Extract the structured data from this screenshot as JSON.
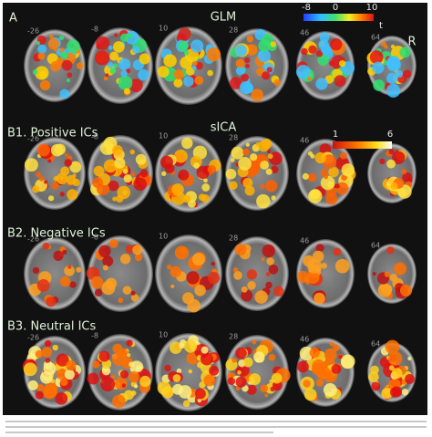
{
  "panel_a": {
    "label": "A",
    "method": "GLM",
    "colorbar_ticks": [
      -8,
      0,
      10
    ],
    "unit": "t",
    "side": "R"
  },
  "slices": [
    "-26",
    "-8",
    "10",
    "28",
    "46",
    "64"
  ],
  "sica": {
    "method": "sICA",
    "colorbar_ticks": [
      1,
      6
    ]
  },
  "rows": [
    {
      "label": "B1. Positive ICs"
    },
    {
      "label": "B2. Negative ICs"
    },
    {
      "label": "B3. Neutral ICs"
    }
  ]
}
